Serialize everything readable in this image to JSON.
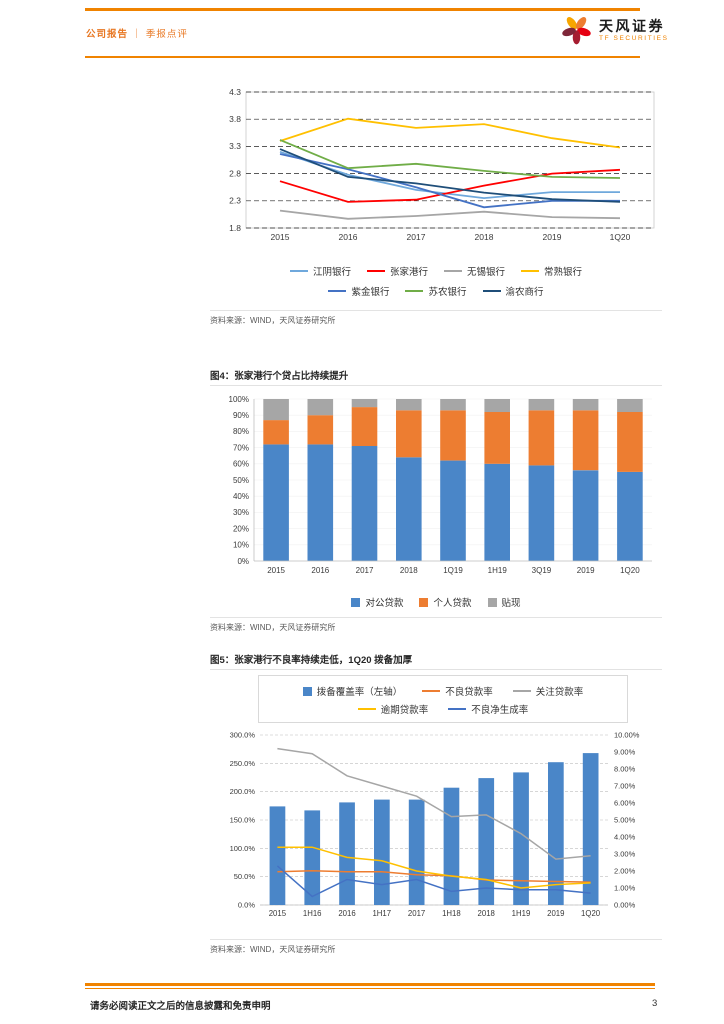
{
  "header": {
    "doc_type": "公司报告",
    "divider": "｜",
    "subtype": "季报点评",
    "logo_cn": "天风证券",
    "logo_en": "TF SECURITIES",
    "accent_color": "#F08300"
  },
  "figures": {
    "fig4_title": "图4：张家港行个贷占比持续提升",
    "fig5_title": "图5：张家港行不良率持续走低，1Q20 拨备加厚",
    "source_note": "资料来源：WIND，天风证券研究所"
  },
  "footer": {
    "disclaimer": "请务必阅读正文之后的信息披露和免责申明",
    "page_number": "3"
  },
  "chart_data": [
    {
      "type": "line",
      "title": "",
      "categories": [
        "2015",
        "2016",
        "2017",
        "2018",
        "2019",
        "1Q20"
      ],
      "ylim": [
        1.8,
        4.3
      ],
      "ytick_step": 0.5,
      "grid": "dashed-horizontal",
      "legend_position": "bottom",
      "series": [
        {
          "name": "江阴银行",
          "color": "#6FA8DC",
          "values": [
            3.2,
            2.78,
            2.5,
            2.35,
            2.46,
            2.46
          ]
        },
        {
          "name": "张家港行",
          "color": "#FF0000",
          "values": [
            2.66,
            2.28,
            2.32,
            2.58,
            2.8,
            2.87
          ]
        },
        {
          "name": "无锡银行",
          "color": "#A6A6A6",
          "values": [
            2.12,
            1.97,
            2.02,
            2.1,
            2.0,
            1.98
          ]
        },
        {
          "name": "常熟银行",
          "color": "#FFC000",
          "values": [
            3.4,
            3.81,
            3.64,
            3.71,
            3.45,
            3.28
          ]
        },
        {
          "name": "紫金银行",
          "color": "#4472C4",
          "values": [
            3.16,
            2.88,
            2.55,
            2.18,
            2.3,
            2.3
          ]
        },
        {
          "name": "苏农银行",
          "color": "#70AD47",
          "values": [
            3.42,
            2.9,
            2.98,
            2.85,
            2.74,
            2.72
          ]
        },
        {
          "name": "渝农商行",
          "color": "#1F4E79",
          "values": [
            3.25,
            2.74,
            2.62,
            2.45,
            2.33,
            2.28
          ]
        }
      ]
    },
    {
      "type": "bar",
      "subtype": "stacked-100",
      "title": "图4：张家港行个贷占比持续提升",
      "categories": [
        "2015",
        "2016",
        "2017",
        "2018",
        "1Q19",
        "1H19",
        "3Q19",
        "2019",
        "1Q20"
      ],
      "ylim": [
        0,
        100
      ],
      "ytick_step": 10,
      "yformat": "percent",
      "legend_position": "bottom",
      "series": [
        {
          "name": "对公贷款",
          "color": "#4A86C8",
          "values": [
            72,
            72,
            71,
            64,
            62,
            60,
            59,
            56,
            55
          ]
        },
        {
          "name": "个人贷款",
          "color": "#ED7D31",
          "values": [
            15,
            18,
            24,
            29,
            31,
            32,
            34,
            37,
            37
          ]
        },
        {
          "name": "贴现",
          "color": "#A6A6A6",
          "values": [
            13,
            10,
            5,
            7,
            7,
            8,
            7,
            7,
            8
          ]
        }
      ]
    },
    {
      "type": "combo",
      "title": "图5：张家港行不良率持续走低，1Q20 拨备加厚",
      "categories": [
        "2015",
        "1H16",
        "2016",
        "1H17",
        "2017",
        "1H18",
        "2018",
        "1H19",
        "2019",
        "1Q20"
      ],
      "grid": "dashed-horizontal",
      "legend_position": "top",
      "left_axis": {
        "min": 0,
        "max": 300,
        "step": 50,
        "suffix": "%",
        "decimals": 1
      },
      "right_axis": {
        "min": 0,
        "max": 10,
        "step": 1,
        "suffix": "%",
        "decimals": 2
      },
      "bar_series": {
        "name": "拨备覆盖率（左轴）",
        "color": "#4A86C8",
        "axis": "left",
        "values": [
          174,
          167,
          181,
          186,
          186,
          207,
          224,
          234,
          252,
          268
        ]
      },
      "line_series": [
        {
          "name": "不良贷款率",
          "color": "#ED7D31",
          "axis": "right",
          "values": [
            1.96,
            2.01,
            1.96,
            1.95,
            1.78,
            1.72,
            1.47,
            1.43,
            1.38,
            1.35
          ]
        },
        {
          "name": "关注贷款率",
          "color": "#A6A6A6",
          "axis": "right",
          "values": [
            9.2,
            8.9,
            7.6,
            7.0,
            6.4,
            5.2,
            5.3,
            4.2,
            2.7,
            2.9
          ]
        },
        {
          "name": "逾期贷款率",
          "color": "#FFC000",
          "axis": "right",
          "values": [
            3.4,
            3.4,
            2.8,
            2.6,
            2.0,
            1.7,
            1.5,
            1.0,
            1.2,
            1.3
          ]
        },
        {
          "name": "不良净生成率",
          "color": "#4472C4",
          "axis": "right",
          "values": [
            2.3,
            0.5,
            1.5,
            1.2,
            1.5,
            0.8,
            1.0,
            0.9,
            0.9,
            0.7
          ]
        }
      ]
    }
  ]
}
